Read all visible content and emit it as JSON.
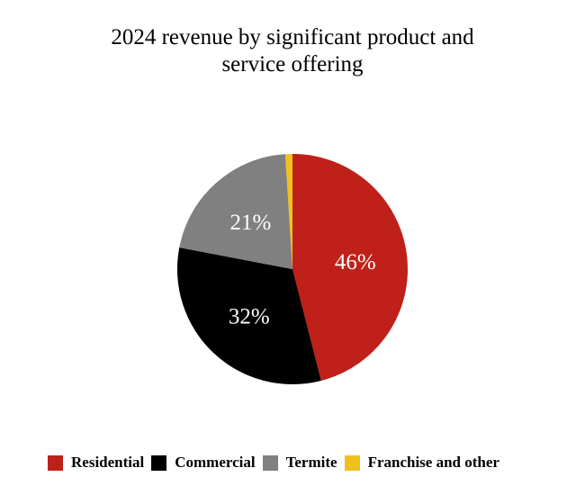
{
  "chart_data": {
    "type": "pie",
    "title": "2024 revenue by significant product and service offering",
    "title_lines": [
      "2024 revenue by significant product and",
      "service offering"
    ],
    "legend_position": "bottom",
    "slices": [
      {
        "name": "Residential",
        "value": 46,
        "label": "46%",
        "color": "#c0201a"
      },
      {
        "name": "Commercial",
        "value": 32,
        "label": "32%",
        "color": "#000000"
      },
      {
        "name": "Termite",
        "value": 21,
        "label": "21%",
        "color": "#808080"
      },
      {
        "name": "Franchise and other",
        "value": 1,
        "label": "",
        "color": "#f0c020"
      }
    ]
  }
}
